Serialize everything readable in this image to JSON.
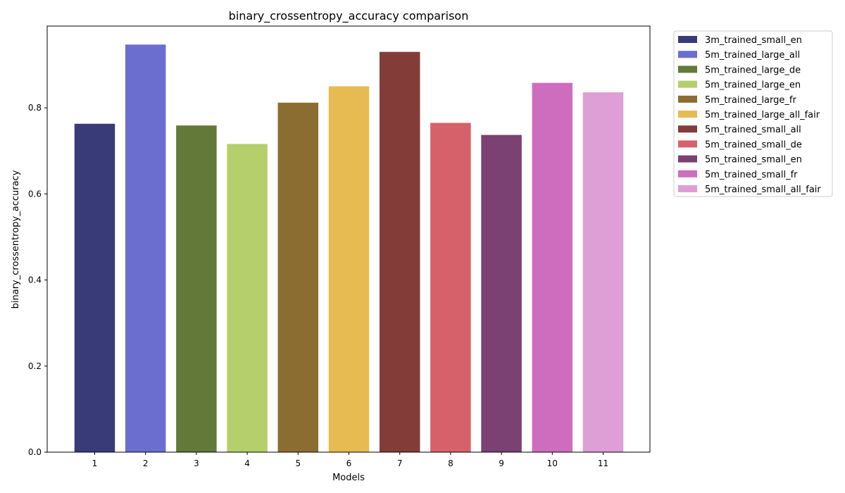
{
  "chart_data": {
    "type": "bar",
    "title": "binary_crossentropy_accuracy comparison",
    "xlabel": "Models",
    "ylabel": "binary_crossentropy_accuracy",
    "ylim": [
      0,
      0.99
    ],
    "yticks": [
      "0.0",
      "0.2",
      "0.4",
      "0.6",
      "0.8"
    ],
    "ytick_values": [
      0,
      0.2,
      0.4,
      0.6,
      0.8
    ],
    "categories": [
      "1",
      "2",
      "3",
      "4",
      "5",
      "6",
      "7",
      "8",
      "9",
      "10",
      "11"
    ],
    "values": [
      0.763,
      0.947,
      0.759,
      0.716,
      0.812,
      0.85,
      0.93,
      0.765,
      0.737,
      0.858,
      0.836
    ],
    "series": [
      {
        "name": "3m_trained_small_en",
        "color": "#393b79"
      },
      {
        "name": "5m_trained_large_all",
        "color": "#6b6ecf"
      },
      {
        "name": "5m_trained_large_de",
        "color": "#637939"
      },
      {
        "name": "5m_trained_large_en",
        "color": "#b5cf6b"
      },
      {
        "name": "5m_trained_large_fr",
        "color": "#8c6d31"
      },
      {
        "name": "5m_trained_large_all_fair",
        "color": "#e7ba52"
      },
      {
        "name": "5m_trained_small_all",
        "color": "#843c39"
      },
      {
        "name": "5m_trained_small_de",
        "color": "#d6616b"
      },
      {
        "name": "5m_trained_small_en",
        "color": "#7b4173"
      },
      {
        "name": "5m_trained_small_fr",
        "color": "#ce6dbd"
      },
      {
        "name": "5m_trained_small_all_fair",
        "color": "#de9ed6"
      }
    ],
    "grid": false,
    "legend_position": "outside-top-right"
  }
}
